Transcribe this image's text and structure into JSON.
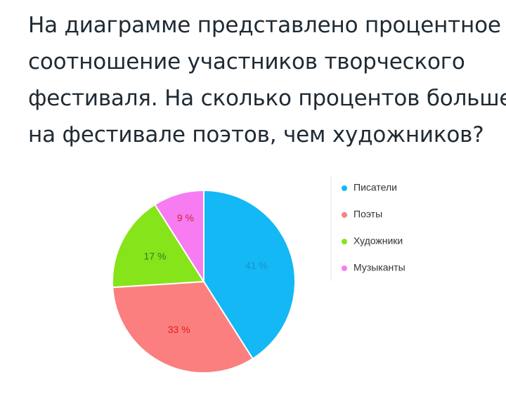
{
  "question": {
    "lines": [
      "На диаграмме представлено процентное",
      "соотношение участников творческого",
      "фестиваля. На сколько процентов больше",
      "на фестивале поэтов, чем художников?"
    ]
  },
  "chart_data": {
    "type": "pie",
    "title": "",
    "legend_position": "right",
    "slices": [
      {
        "name": "Писатели",
        "value": 41,
        "label": "41 %",
        "color": "#13b8f5",
        "label_color": "#1a8fd0"
      },
      {
        "name": "Поэты",
        "value": 33,
        "label": "33 %",
        "color": "#fb7f7f",
        "label_color": "#e02020"
      },
      {
        "name": "Художники",
        "value": 17,
        "label": "17 %",
        "color": "#86e41a",
        "label_color": "#2b7a2b"
      },
      {
        "name": "Музыканты",
        "value": 9,
        "label": "9 %",
        "color": "#f77cf2",
        "label_color": "#d02828"
      }
    ]
  }
}
